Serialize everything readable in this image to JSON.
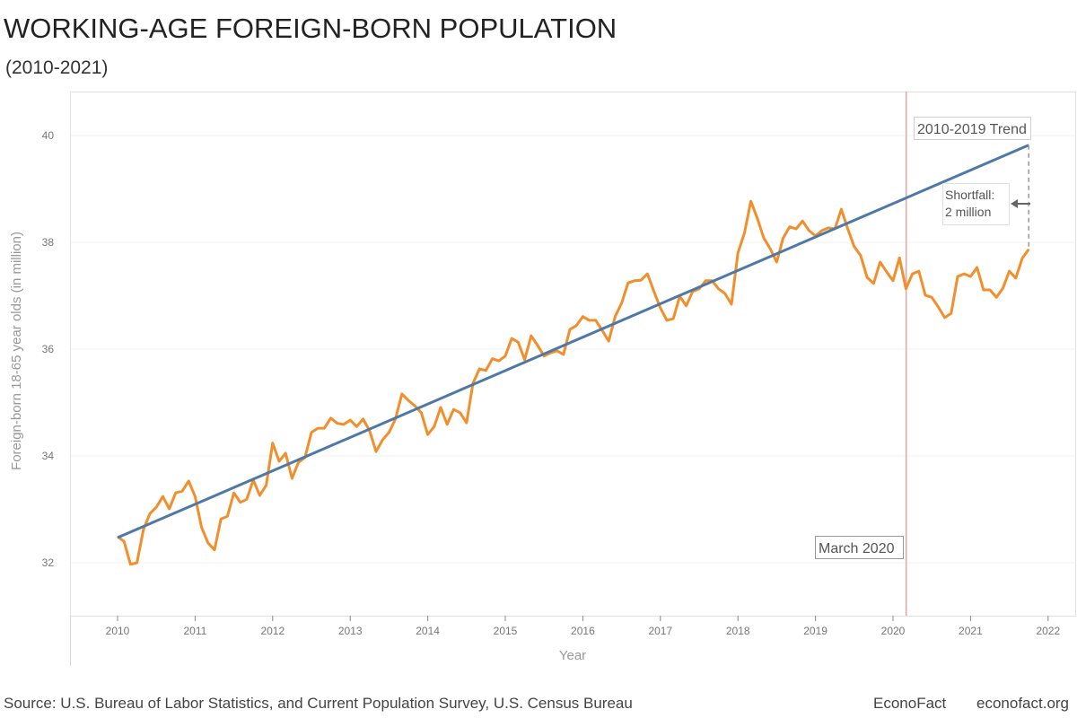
{
  "header": {
    "title": "WORKING-AGE FOREIGN-BORN POPULATION",
    "subtitle": "(2010-2021)"
  },
  "footer": {
    "source": "Source: U.S. Bureau of Labor Statistics, and Current Population Survey, U.S. Census Bureau",
    "brand": "EconoFact",
    "site": "econofact.org"
  },
  "chart_data": {
    "type": "line",
    "title": "WORKING-AGE FOREIGN-BORN POPULATION",
    "subtitle": "(2010-2021)",
    "xlabel": "Year",
    "ylabel": "Foreign-born 18-65 year olds (in million)",
    "xlim": [
      2009.4,
      2022.3
    ],
    "ylim": [
      31,
      40.8
    ],
    "xticks": [
      "2010",
      "2011",
      "2012",
      "2013",
      "2014",
      "2015",
      "2016",
      "2017",
      "2018",
      "2019",
      "2020",
      "2021",
      "2022"
    ],
    "yticks": [
      "32",
      "34",
      "36",
      "38",
      "40"
    ],
    "grid": "horizontal",
    "colors": {
      "series": "#f28e2b",
      "trend": "#4e79a7",
      "marker": "#e8a3a8"
    },
    "series": [
      {
        "start": "2010-01",
        "frequency": "monthly",
        "values": [
          32.49,
          32.4,
          31.97,
          32.0,
          32.62,
          32.92,
          33.04,
          33.24,
          33.01,
          33.31,
          33.34,
          33.53,
          33.24,
          32.66,
          32.37,
          32.24,
          32.82,
          32.87,
          33.31,
          33.13,
          33.19,
          33.55,
          33.26,
          33.45,
          34.24,
          33.9,
          34.05,
          33.58,
          33.88,
          33.97,
          34.44,
          34.52,
          34.52,
          34.71,
          34.61,
          34.59,
          34.67,
          34.55,
          34.69,
          34.47,
          34.08,
          34.3,
          34.44,
          34.69,
          35.16,
          35.04,
          34.94,
          34.81,
          34.4,
          34.55,
          34.91,
          34.59,
          34.87,
          34.81,
          34.62,
          35.36,
          35.63,
          35.6,
          35.82,
          35.78,
          35.87,
          36.2,
          36.13,
          35.8,
          36.25,
          36.07,
          35.87,
          35.93,
          35.97,
          35.9,
          36.37,
          36.44,
          36.61,
          36.54,
          36.54,
          36.35,
          36.15,
          36.61,
          36.86,
          37.24,
          37.28,
          37.29,
          37.41,
          37.08,
          36.77,
          36.54,
          36.57,
          36.99,
          36.81,
          37.08,
          37.13,
          37.28,
          37.28,
          37.13,
          37.04,
          36.84,
          37.8,
          38.17,
          38.77,
          38.45,
          38.08,
          37.88,
          37.63,
          38.08,
          38.29,
          38.25,
          38.4,
          38.22,
          38.12,
          38.22,
          38.27,
          38.25,
          38.62,
          38.25,
          37.92,
          37.75,
          37.34,
          37.23,
          37.63,
          37.45,
          37.28,
          37.71,
          37.13,
          37.41,
          37.46,
          37.01,
          36.97,
          36.79,
          36.59,
          36.67,
          37.36,
          37.41,
          37.36,
          37.53,
          37.11,
          37.11,
          36.97,
          37.14,
          37.46,
          37.33,
          37.7,
          37.87
        ]
      }
    ],
    "trend": {
      "label": "2010-2019 Trend",
      "x": [
        2010.0,
        2021.75
      ],
      "y": [
        32.47,
        39.82
      ]
    },
    "annotations": {
      "march": {
        "label": "March 2020",
        "x": 2020.17
      },
      "shortfall": {
        "line1": "Shortfall:",
        "line2": "2 million",
        "x": 2021.75,
        "from": 37.87,
        "to": 39.82
      }
    }
  }
}
